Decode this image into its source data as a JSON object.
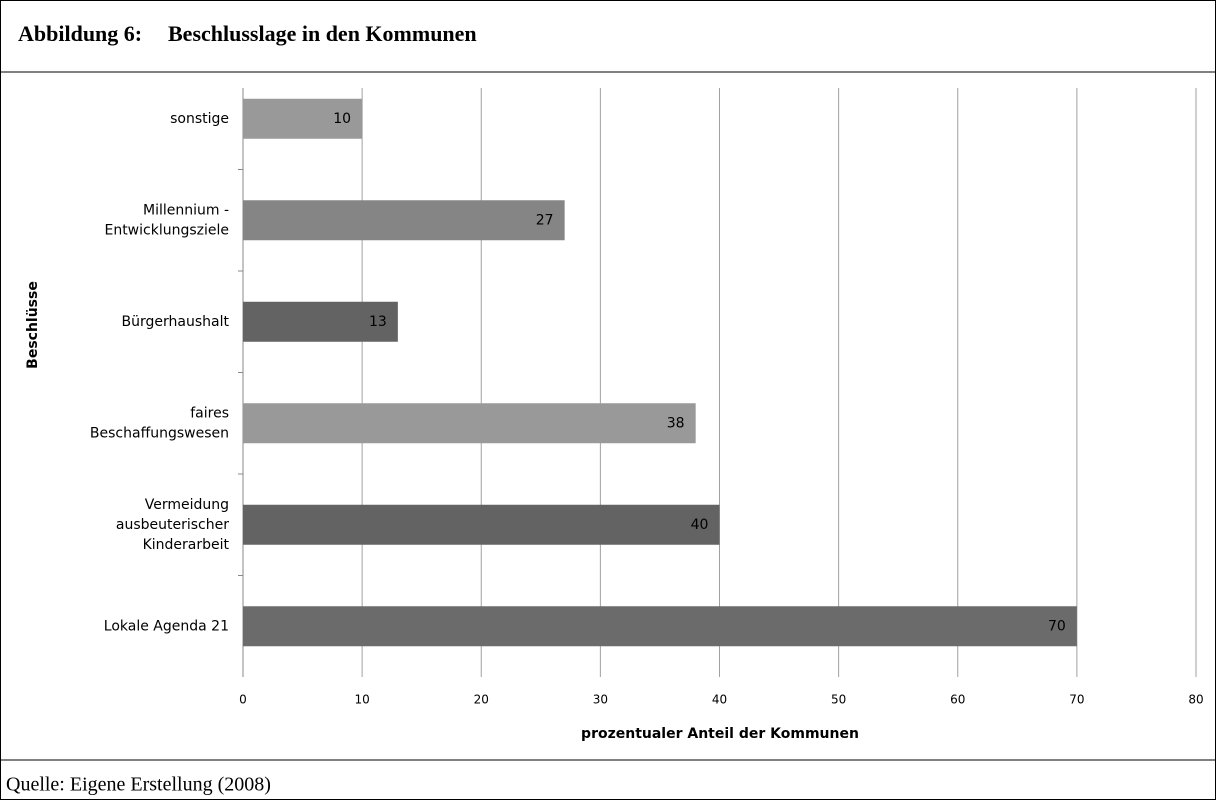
{
  "figure_label": "Abbildung 6:",
  "source": "Quelle: Eigene Erstellung (2008)",
  "chart_data": {
    "type": "barh",
    "title": "Beschlusslage in den Kommunen",
    "categories": [
      "sonstige",
      "Millennium -\nEntwicklungsziele",
      "Bürgerhaushalt",
      "faires\nBeschaffungswesen",
      "Vermeidung\nausbeuterischer\nKinderarbeit",
      "Lokale Agenda 21"
    ],
    "values": [
      10,
      27,
      13,
      38,
      40,
      70
    ],
    "colors": [
      "#999999",
      "#858585",
      "#636363",
      "#999999",
      "#636363",
      "#6b6b6b"
    ],
    "xlim": [
      0,
      80
    ],
    "xticks": [
      0,
      10,
      20,
      30,
      40,
      50,
      60,
      70,
      80
    ],
    "xlabel": "prozentualer Anteil der Kommunen",
    "ylabel": "Beschlüsse",
    "grid": true
  }
}
